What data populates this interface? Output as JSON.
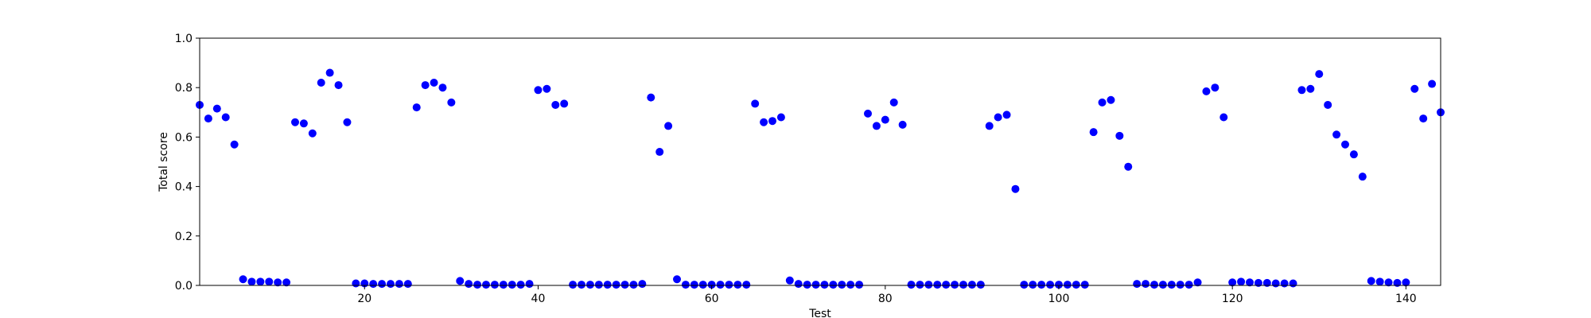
{
  "chart_data": {
    "type": "scatter",
    "xlabel": "Test",
    "ylabel": "Total score",
    "xlim": [
      1,
      144
    ],
    "ylim": [
      0.0,
      1.0
    ],
    "grid": false,
    "marker_color": "#0000ff",
    "x_ticks": [
      20,
      40,
      60,
      80,
      100,
      120,
      140
    ],
    "y_ticks": [
      0.0,
      0.2,
      0.4,
      0.6,
      0.8,
      1.0
    ],
    "x_tick_labels": [
      "20",
      "40",
      "60",
      "80",
      "100",
      "120",
      "140"
    ],
    "y_tick_labels": [
      "0.0",
      "0.2",
      "0.4",
      "0.6",
      "0.8",
      "1.0"
    ],
    "series": [
      {
        "x": [
          1,
          2,
          3,
          4,
          5,
          6,
          7,
          8,
          9,
          10,
          11,
          12,
          13,
          14,
          15,
          16,
          17,
          18,
          19,
          20,
          21,
          22,
          23,
          24,
          25,
          26,
          27,
          28,
          29,
          30,
          31,
          32,
          33,
          34,
          35,
          36,
          37,
          38,
          39,
          40,
          41,
          42,
          43,
          44,
          45,
          46,
          47,
          48,
          49,
          50,
          51,
          52,
          53,
          54,
          55,
          56,
          57,
          58,
          59,
          60,
          61,
          62,
          63,
          64,
          65,
          66,
          67,
          68,
          69,
          70,
          71,
          72,
          73,
          74,
          75,
          76,
          77,
          78,
          79,
          80,
          81,
          82,
          83,
          84,
          85,
          86,
          87,
          88,
          89,
          90,
          91,
          92,
          93,
          94,
          95,
          96,
          97,
          98,
          99,
          100,
          101,
          102,
          103,
          104,
          105,
          106,
          107,
          108,
          109,
          110,
          111,
          112,
          113,
          114,
          115,
          116,
          117,
          118,
          119,
          120,
          121,
          122,
          123,
          124,
          125,
          126,
          127,
          128,
          129,
          130,
          131,
          132,
          133,
          134,
          135,
          136,
          137,
          138,
          139,
          140,
          141,
          142,
          143,
          144
        ],
        "y": [
          0.73,
          0.675,
          0.715,
          0.68,
          0.57,
          0.025,
          0.015,
          0.015,
          0.015,
          0.012,
          0.012,
          0.66,
          0.655,
          0.615,
          0.82,
          0.86,
          0.81,
          0.66,
          0.008,
          0.008,
          0.006,
          0.006,
          0.006,
          0.006,
          0.006,
          0.72,
          0.81,
          0.82,
          0.8,
          0.74,
          0.018,
          0.006,
          0.003,
          0.003,
          0.003,
          0.003,
          0.003,
          0.003,
          0.006,
          0.79,
          0.795,
          0.73,
          0.735,
          0.003,
          0.003,
          0.003,
          0.003,
          0.003,
          0.003,
          0.003,
          0.003,
          0.006,
          0.76,
          0.54,
          0.645,
          0.025,
          0.003,
          0.003,
          0.003,
          0.003,
          0.003,
          0.003,
          0.003,
          0.003,
          0.735,
          0.66,
          0.665,
          0.68,
          0.02,
          0.006,
          0.003,
          0.003,
          0.003,
          0.003,
          0.003,
          0.003,
          0.003,
          0.695,
          0.645,
          0.67,
          0.74,
          0.65,
          0.003,
          0.003,
          0.003,
          0.003,
          0.003,
          0.003,
          0.003,
          0.003,
          0.003,
          0.645,
          0.68,
          0.69,
          0.39,
          0.003,
          0.003,
          0.003,
          0.003,
          0.003,
          0.003,
          0.003,
          0.003,
          0.62,
          0.74,
          0.75,
          0.605,
          0.48,
          0.006,
          0.006,
          0.003,
          0.003,
          0.003,
          0.003,
          0.003,
          0.012,
          0.785,
          0.8,
          0.68,
          0.012,
          0.015,
          0.012,
          0.01,
          0.01,
          0.008,
          0.008,
          0.008,
          0.79,
          0.795,
          0.855,
          0.73,
          0.61,
          0.57,
          0.53,
          0.44,
          0.018,
          0.015,
          0.012,
          0.01,
          0.012,
          0.795,
          0.675,
          0.815,
          0.7
        ]
      }
    ]
  }
}
